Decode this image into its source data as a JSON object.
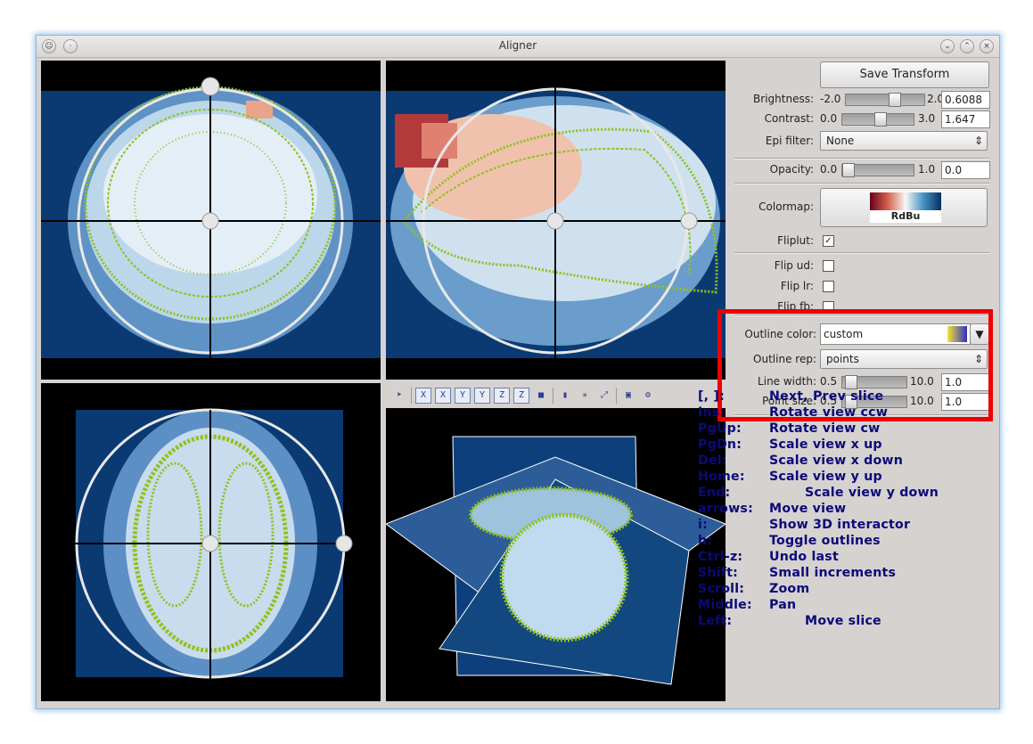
{
  "window": {
    "title": "Aligner"
  },
  "toolbar_icons": [
    {
      "name": "pointer-icon",
      "glyph": "➤"
    },
    {
      "name": "x-axis-icon",
      "glyph": "X"
    },
    {
      "name": "x-axis-alt-icon",
      "glyph": "X"
    },
    {
      "name": "y-axis-icon",
      "glyph": "Y"
    },
    {
      "name": "y-axis-alt-icon",
      "glyph": "Y"
    },
    {
      "name": "z-axis-icon",
      "glyph": "Z"
    },
    {
      "name": "z-axis-alt-icon",
      "glyph": "Z"
    },
    {
      "name": "cube-icon",
      "glyph": "■"
    },
    {
      "name": "bars-icon",
      "glyph": "▮"
    },
    {
      "name": "scatter-icon",
      "glyph": "✳"
    },
    {
      "name": "fit-view-icon",
      "glyph": "⤢"
    },
    {
      "name": "save-icon",
      "glyph": "▣"
    },
    {
      "name": "settings-icon",
      "glyph": "⚙"
    }
  ],
  "controls": {
    "save_transform": "Save Transform",
    "brightness": {
      "label": "Brightness:",
      "min": "-2.0",
      "max": "2.0",
      "value": "0.6088",
      "fraction": 0.65
    },
    "contrast": {
      "label": "Contrast:",
      "min": "0.0",
      "max": "3.0",
      "value": "1.647",
      "fraction": 0.55
    },
    "epi_filter": {
      "label": "Epi filter:",
      "value": "None"
    },
    "opacity": {
      "label": "Opacity:",
      "min": "0.0",
      "max": "1.0",
      "value": "0.0",
      "fraction": 0.0
    },
    "colormap": {
      "label": "Colormap:",
      "value": "RdBu"
    },
    "fliplut": {
      "label": "Fliplut:",
      "checked": true
    },
    "flip_ud": {
      "label": "Flip ud:",
      "checked": false
    },
    "flip_lr": {
      "label": "Flip lr:",
      "checked": false
    },
    "flip_fb": {
      "label": "Flip fb:",
      "checked": false
    },
    "outline_color": {
      "label": "Outline color:",
      "value": "custom"
    },
    "outline_rep": {
      "label": "Outline rep:",
      "value": "points"
    },
    "line_width": {
      "label": "Line width:",
      "min": "0.5",
      "max": "10.0",
      "value": "1.0",
      "fraction": 0.05
    },
    "point_size": {
      "label": "Point size:",
      "min": "0.5",
      "max": "10.0",
      "value": "1.0",
      "fraction": 0.05
    }
  },
  "shortcuts": [
    {
      "key": "[, ]:",
      "desc": "Next, Prev slice"
    },
    {
      "key": "Ins:",
      "desc": "Rotate view ccw"
    },
    {
      "key": "PgUp:",
      "desc": "Rotate view cw"
    },
    {
      "key": "PgDn:",
      "desc": "Scale view x up"
    },
    {
      "key": "Del:",
      "desc": "Scale view x down"
    },
    {
      "key": "Home:",
      "desc": "Scale view y up"
    },
    {
      "key": "End:",
      "desc": "Scale view y down"
    },
    {
      "key": "arrows:",
      "desc": "Move view"
    },
    {
      "key": "i:",
      "desc": "Show 3D interactor"
    },
    {
      "key": "h:",
      "desc": "Toggle outlines"
    },
    {
      "key": "Ctrl-z:",
      "desc": "Undo last"
    },
    {
      "key": "Shift:",
      "desc": "Small increments"
    },
    {
      "key": "Scroll:",
      "desc": "Zoom"
    },
    {
      "key": "Middle:",
      "desc": "Pan"
    },
    {
      "key": "Left:",
      "desc": "Move slice"
    }
  ],
  "colors": {
    "accent_outline": "#ee0000",
    "keys_text": "#0a0a7a",
    "outline_green": "#8ec21a",
    "brain_blue": "#0b3a73"
  }
}
